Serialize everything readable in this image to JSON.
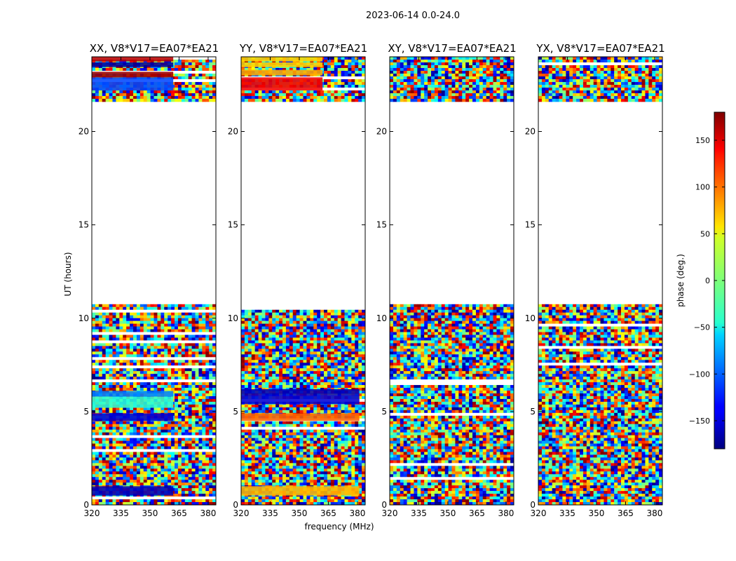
{
  "chart_data": {
    "type": "heatmap",
    "suptitle": "2023-06-14 0.0-24.0",
    "xlabel": "frequency (MHz)",
    "ylabel": "UT (hours)",
    "xlim": [
      320,
      384
    ],
    "ylim": [
      0,
      24
    ],
    "xticks": [
      320,
      335,
      350,
      365,
      380
    ],
    "yticks": [
      0,
      5,
      10,
      15,
      20
    ],
    "colorbar": {
      "label": "phase (deg.)",
      "range": [
        -180,
        180
      ],
      "ticks": [
        -150,
        -100,
        -50,
        0,
        50,
        100,
        150
      ],
      "tick_labels": [
        "−150",
        "−100",
        "−50",
        "0",
        "50",
        "100",
        "150"
      ],
      "colormap": "jet"
    },
    "data_intervals_ut": [
      [
        0.0,
        10.75
      ],
      [
        21.6,
        24.0
      ]
    ],
    "panels": [
      {
        "title": "XX, V8*V17=EA07*EA21",
        "coherent_bands": [
          {
            "ut": [
              0.5,
              1.0
            ],
            "freq": [
              320,
              362
            ],
            "phase": -160
          },
          {
            "ut": [
              4.5,
              4.9
            ],
            "freq": [
              320,
              362
            ],
            "phase": -150
          },
          {
            "ut": [
              5.2,
              5.8
            ],
            "freq": [
              320,
              362
            ],
            "phase": -30
          },
          {
            "ut": [
              5.8,
              6.1
            ],
            "freq": [
              320,
              362
            ],
            "phase": -90
          },
          {
            "ut": [
              22.2,
              22.9
            ],
            "freq": [
              320,
              362
            ],
            "phase": -110
          },
          {
            "ut": [
              22.9,
              23.2
            ],
            "freq": [
              320,
              362
            ],
            "phase": 170
          },
          {
            "ut": [
              23.45,
              23.7
            ],
            "freq": [
              320,
              362
            ],
            "phase": -170
          },
          {
            "ut": [
              23.75,
              24.0
            ],
            "freq": [
              320,
              362
            ],
            "phase": 160
          }
        ]
      },
      {
        "title": "YY, V8*V17=EA07*EA21",
        "coherent_bands": [
          {
            "ut": [
              0.5,
              1.0
            ],
            "freq": [
              320,
              381
            ],
            "phase": 70
          },
          {
            "ut": [
              4.5,
              4.9
            ],
            "freq": [
              320,
              381
            ],
            "phase": 100
          },
          {
            "ut": [
              5.4,
              5.9
            ],
            "freq": [
              320,
              381
            ],
            "phase": -150
          },
          {
            "ut": [
              5.9,
              6.2
            ],
            "freq": [
              320,
              381
            ],
            "phase": -160
          },
          {
            "ut": [
              22.2,
              22.9
            ],
            "freq": [
              320,
              362
            ],
            "phase": 140
          },
          {
            "ut": [
              23.0,
              23.3
            ],
            "freq": [
              320,
              362
            ],
            "phase": 75
          },
          {
            "ut": [
              23.45,
              23.7
            ],
            "freq": [
              320,
              362
            ],
            "phase": 60
          },
          {
            "ut": [
              23.75,
              24.0
            ],
            "freq": [
              320,
              362
            ],
            "phase": 60
          }
        ]
      },
      {
        "title": "XY, V8*V17=EA07*EA21",
        "coherent_bands": []
      },
      {
        "title": "YX, V8*V17=EA07*EA21",
        "coherent_bands": []
      }
    ]
  }
}
